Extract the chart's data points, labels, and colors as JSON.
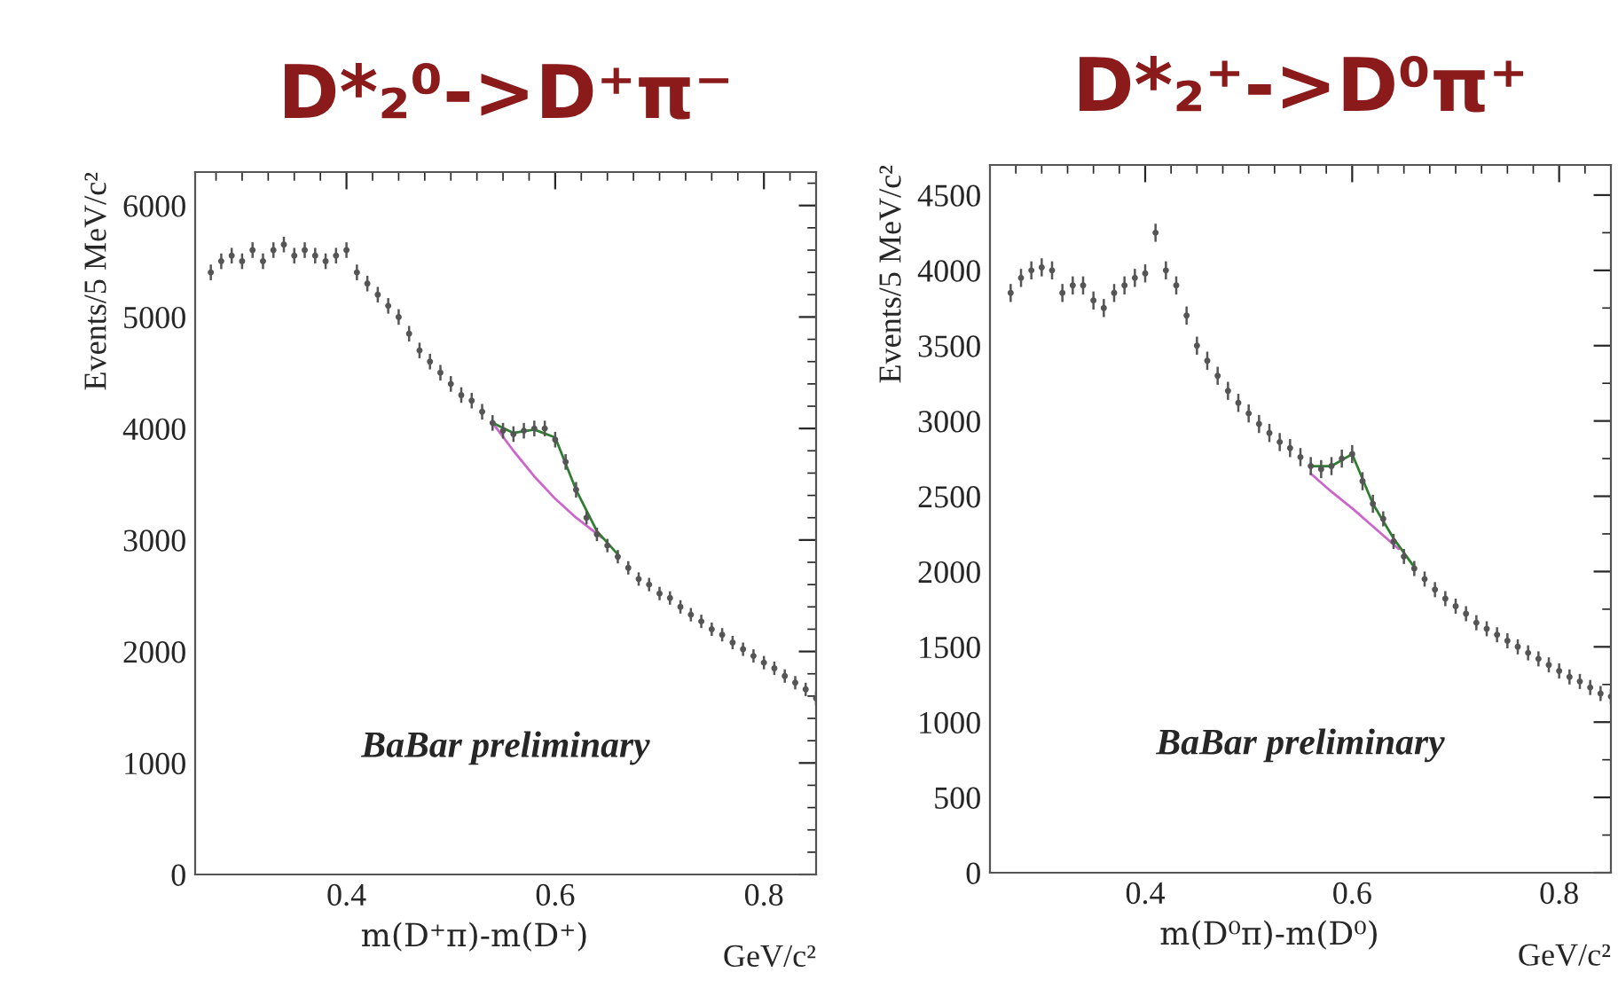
{
  "chart_data": [
    {
      "type": "scatter",
      "title": "D*₂⁰->D⁺π⁻",
      "xlabel": "m(D⁺π)-m(D⁺)",
      "ylabel": "Events/5 MeV/c²",
      "annotations": [
        "BaBar preliminary",
        "GeV/c²"
      ],
      "xlim": [
        0.255,
        0.85
      ],
      "ylim": [
        0,
        6300
      ],
      "xticks": [
        0.4,
        0.6,
        0.8
      ],
      "yticks": [
        0,
        1000,
        2000,
        3000,
        4000,
        5000,
        6000
      ],
      "series": [
        {
          "color": "#555555",
          "marker": "circle",
          "x": [
            0.27,
            0.28,
            0.29,
            0.3,
            0.31,
            0.32,
            0.33,
            0.34,
            0.35,
            0.36,
            0.37,
            0.38,
            0.39,
            0.4,
            0.41,
            0.42,
            0.43,
            0.44,
            0.45,
            0.46,
            0.47,
            0.48,
            0.49,
            0.5,
            0.51,
            0.52,
            0.53,
            0.54,
            0.55,
            0.56,
            0.57,
            0.58,
            0.59,
            0.6,
            0.61,
            0.62,
            0.63,
            0.64,
            0.65,
            0.66,
            0.67,
            0.68,
            0.69,
            0.7,
            0.71,
            0.72,
            0.73,
            0.74,
            0.75,
            0.76,
            0.77,
            0.78,
            0.79,
            0.8,
            0.81,
            0.82,
            0.83,
            0.84,
            0.85
          ],
          "values": [
            5400,
            5500,
            5550,
            5500,
            5600,
            5500,
            5600,
            5650,
            5550,
            5600,
            5550,
            5500,
            5550,
            5600,
            5400,
            5300,
            5200,
            5100,
            5000,
            4850,
            4700,
            4600,
            4500,
            4400,
            4300,
            4250,
            4150,
            4050,
            3980,
            3950,
            3980,
            4000,
            4000,
            3900,
            3700,
            3450,
            3200,
            3050,
            2950,
            2850,
            2750,
            2650,
            2600,
            2520,
            2480,
            2400,
            2330,
            2270,
            2200,
            2150,
            2080,
            2020,
            1960,
            1900,
            1850,
            1780,
            1720,
            1660,
            1580
          ],
          "errors": [
            70,
            70,
            70,
            70,
            70,
            70,
            70,
            70,
            70,
            70,
            70,
            70,
            70,
            70,
            70,
            70,
            70,
            70,
            70,
            70,
            70,
            70,
            70,
            70,
            70,
            70,
            70,
            70,
            70,
            70,
            70,
            70,
            70,
            70,
            70,
            70,
            60,
            60,
            60,
            60,
            60,
            60,
            60,
            60,
            60,
            60,
            60,
            60,
            60,
            60,
            60,
            60,
            60,
            60,
            60,
            60,
            60,
            60,
            60
          ]
        },
        {
          "type": "line",
          "color": "#cc66cc",
          "x": [
            0.54,
            0.56,
            0.58,
            0.6,
            0.62,
            0.645
          ],
          "values": [
            4050,
            3800,
            3570,
            3370,
            3200,
            3020
          ]
        },
        {
          "type": "line",
          "color": "#2e7d32",
          "x": [
            0.54,
            0.56,
            0.58,
            0.6,
            0.62,
            0.64,
            0.66
          ],
          "values": [
            4050,
            3960,
            3990,
            3920,
            3450,
            3080,
            2870
          ]
        }
      ]
    },
    {
      "type": "scatter",
      "title": "D*₂⁺->D⁰π⁺",
      "xlabel": "m(D⁰π)-m(D⁰)",
      "ylabel": "Events/5 MeV/c²",
      "annotations": [
        "BaBar preliminary",
        "GeV/c²"
      ],
      "xlim": [
        0.25,
        0.85
      ],
      "ylim": [
        0,
        4700
      ],
      "xticks": [
        0.4,
        0.6,
        0.8
      ],
      "yticks": [
        0,
        500,
        1000,
        1500,
        2000,
        2500,
        3000,
        3500,
        4000,
        4500
      ],
      "series": [
        {
          "color": "#555555",
          "marker": "circle",
          "x": [
            0.27,
            0.28,
            0.29,
            0.3,
            0.31,
            0.32,
            0.33,
            0.34,
            0.35,
            0.36,
            0.37,
            0.38,
            0.39,
            0.4,
            0.41,
            0.42,
            0.43,
            0.44,
            0.45,
            0.46,
            0.47,
            0.48,
            0.49,
            0.5,
            0.51,
            0.52,
            0.53,
            0.54,
            0.55,
            0.56,
            0.57,
            0.58,
            0.59,
            0.6,
            0.61,
            0.62,
            0.63,
            0.64,
            0.65,
            0.66,
            0.67,
            0.68,
            0.69,
            0.7,
            0.71,
            0.72,
            0.73,
            0.74,
            0.75,
            0.76,
            0.77,
            0.78,
            0.79,
            0.8,
            0.81,
            0.82,
            0.83,
            0.84,
            0.85
          ],
          "values": [
            3850,
            3950,
            4000,
            4020,
            4000,
            3850,
            3900,
            3900,
            3800,
            3750,
            3850,
            3900,
            3950,
            3980,
            4250,
            4000,
            3900,
            3700,
            3500,
            3400,
            3300,
            3200,
            3120,
            3050,
            2980,
            2920,
            2860,
            2820,
            2760,
            2700,
            2680,
            2700,
            2750,
            2780,
            2600,
            2450,
            2350,
            2200,
            2100,
            2020,
            1950,
            1880,
            1820,
            1770,
            1720,
            1660,
            1620,
            1580,
            1540,
            1500,
            1460,
            1420,
            1380,
            1340,
            1300,
            1270,
            1230,
            1190,
            1170
          ],
          "errors": [
            60,
            60,
            60,
            60,
            60,
            60,
            60,
            60,
            60,
            60,
            60,
            60,
            60,
            60,
            60,
            60,
            60,
            60,
            60,
            60,
            60,
            60,
            60,
            60,
            60,
            60,
            60,
            60,
            60,
            60,
            60,
            60,
            60,
            60,
            60,
            60,
            50,
            50,
            50,
            50,
            50,
            50,
            50,
            50,
            50,
            50,
            50,
            50,
            50,
            50,
            50,
            50,
            50,
            50,
            50,
            50,
            50,
            50,
            50
          ]
        },
        {
          "type": "line",
          "color": "#cc66cc",
          "x": [
            0.56,
            0.58,
            0.6,
            0.62,
            0.645
          ],
          "values": [
            2650,
            2530,
            2420,
            2300,
            2150
          ]
        },
        {
          "type": "line",
          "color": "#2e7d32",
          "x": [
            0.56,
            0.58,
            0.6,
            0.62,
            0.64,
            0.66
          ],
          "values": [
            2700,
            2700,
            2780,
            2450,
            2220,
            2030
          ]
        }
      ]
    }
  ]
}
